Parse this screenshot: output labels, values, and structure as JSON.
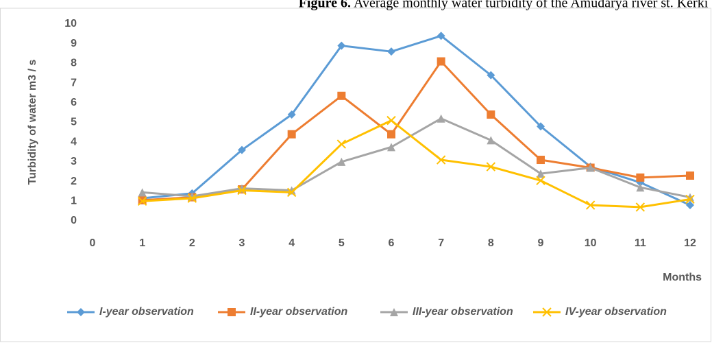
{
  "chart_data": {
    "type": "line",
    "figure_label": "Figure 6.",
    "title": "Average monthly water turbidity of the Amudarya river st. Kerki",
    "ylabel": "Turbidity of water m3 / s",
    "xlabel": "Months",
    "x": [
      1,
      2,
      3,
      4,
      5,
      6,
      7,
      8,
      9,
      10,
      11,
      12
    ],
    "xlim": [
      0,
      12
    ],
    "xticks": [
      0,
      1,
      2,
      3,
      4,
      5,
      6,
      7,
      8,
      9,
      10,
      11,
      12
    ],
    "ylim": [
      0,
      10
    ],
    "yticks": [
      0,
      1,
      2,
      3,
      4,
      5,
      6,
      7,
      8,
      9,
      10
    ],
    "grid": false,
    "legend": "bottom",
    "series": [
      {
        "name": "I-year observation",
        "color": "#5b9bd5",
        "marker": "diamond",
        "values": [
          1.15,
          1.4,
          3.6,
          5.4,
          8.9,
          8.6,
          9.4,
          7.4,
          4.8,
          2.75,
          1.95,
          0.8
        ]
      },
      {
        "name": "II-year observation",
        "color": "#ed7d31",
        "marker": "square",
        "values": [
          1.05,
          1.2,
          1.6,
          4.4,
          6.35,
          4.4,
          8.1,
          5.4,
          3.1,
          2.7,
          2.2,
          2.3
        ]
      },
      {
        "name": "III-year observation",
        "color": "#a5a5a5",
        "marker": "triangle",
        "values": [
          1.45,
          1.25,
          1.65,
          1.55,
          3.0,
          3.75,
          5.2,
          4.1,
          2.4,
          2.7,
          1.7,
          1.2
        ]
      },
      {
        "name": "IV-year observation",
        "color": "#ffc000",
        "marker": "x",
        "values": [
          1.0,
          1.15,
          1.55,
          1.45,
          3.9,
          5.1,
          3.1,
          2.75,
          2.05,
          0.8,
          0.7,
          1.1
        ]
      }
    ]
  }
}
